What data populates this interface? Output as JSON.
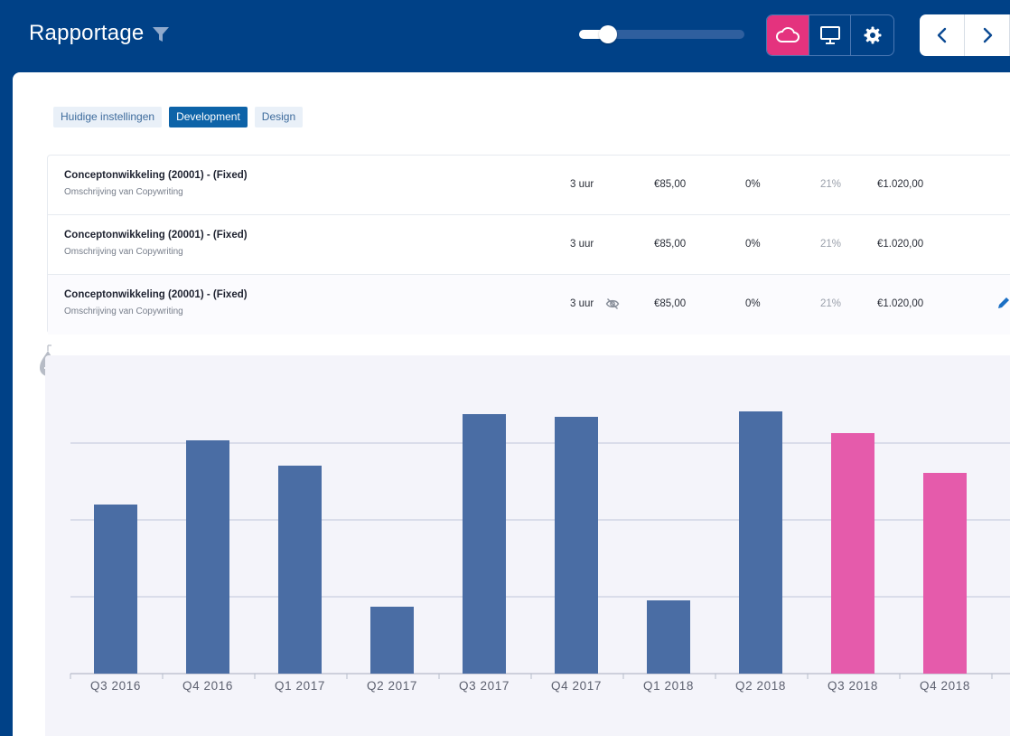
{
  "header": {
    "title": "Rapportage",
    "zoom_slider_value": 0.15
  },
  "tabs": [
    {
      "label": "Huidige instellingen",
      "active": false
    },
    {
      "label": "Development",
      "active": true
    },
    {
      "label": "Design",
      "active": false
    }
  ],
  "rows": [
    {
      "title": "Conceptonwikkeling (20001) -  (Fixed)",
      "subtitle": "Omschrijving van Copywriting",
      "hours": "3 uur",
      "rate": "€85,00",
      "discount": "0%",
      "vat": "21%",
      "total": "€1.020,00",
      "hidden_icon": false,
      "edit_icon": false
    },
    {
      "title": "Conceptonwikkeling (20001) -  (Fixed)",
      "subtitle": "Omschrijving van Copywriting",
      "hours": "3 uur",
      "rate": "€85,00",
      "discount": "0%",
      "vat": "21%",
      "total": "€1.020,00",
      "hidden_icon": false,
      "edit_icon": false
    },
    {
      "title": "Conceptonwikkeling (20001) -  (Fixed)",
      "subtitle": "Omschrijving van Copywriting",
      "hours": "3 uur",
      "rate": "€85,00",
      "discount": "0%",
      "vat": "21%",
      "total": "€1.020,00",
      "hidden_icon": true,
      "edit_icon": true
    }
  ],
  "colors": {
    "header_bg": "#004187",
    "accent_pink": "#e4337e",
    "bar_blue": "#4a6da4",
    "bar_pink": "#e55bab",
    "active_tab": "#0d63a8"
  },
  "icons": {
    "filter": "filter-icon",
    "cloud": "cloud-icon",
    "monitor": "monitor-icon",
    "settings": "gear-icon",
    "prev": "chevron-left-icon",
    "next": "chevron-right-icon",
    "hidden": "eye-off-icon",
    "edit": "pencil-icon",
    "add": "add-row-icon"
  },
  "chart_data": {
    "type": "bar",
    "categories": [
      "Q3 2016",
      "Q4 2016",
      "Q1 2017",
      "Q2 2017",
      "Q3 2017",
      "Q4 2017",
      "Q1 2018",
      "Q2 2018",
      "Q3 2018",
      "Q4 2018"
    ],
    "values": [
      187,
      258,
      230,
      74,
      287,
      284,
      81,
      290,
      266,
      222
    ],
    "highlighted": [
      false,
      false,
      false,
      false,
      false,
      false,
      false,
      false,
      true,
      true
    ],
    "ylim": [
      0,
      340
    ],
    "gridlines": [
      85,
      170,
      255
    ],
    "grid": true,
    "legend": "none",
    "title": "",
    "xlabel": "",
    "ylabel": ""
  }
}
